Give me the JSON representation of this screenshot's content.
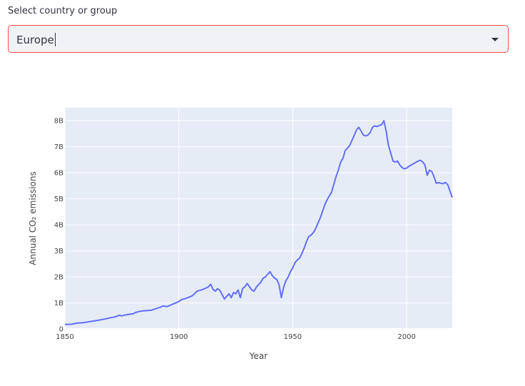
{
  "selector": {
    "label": "Select country or group",
    "value": "Europe",
    "accent_color": "#ff4b4b"
  },
  "chart_data": {
    "type": "line",
    "xlabel": "Year",
    "ylabel": "Annual CO₂ emissions",
    "xlim": [
      1850,
      2020
    ],
    "ylim": [
      0,
      8.5
    ],
    "x_ticks": [
      {
        "value": 1850,
        "label": "1850"
      },
      {
        "value": 1900,
        "label": "1900"
      },
      {
        "value": 1950,
        "label": "1950"
      },
      {
        "value": 2000,
        "label": "2000"
      }
    ],
    "y_ticks": [
      {
        "value": 0,
        "label": "0"
      },
      {
        "value": 1,
        "label": "1B"
      },
      {
        "value": 2,
        "label": "2B"
      },
      {
        "value": 3,
        "label": "3B"
      },
      {
        "value": 4,
        "label": "4B"
      },
      {
        "value": 5,
        "label": "5B"
      },
      {
        "value": 6,
        "label": "6B"
      },
      {
        "value": 7,
        "label": "7B"
      },
      {
        "value": 8,
        "label": "8B"
      }
    ],
    "line_color": "#636efa",
    "plot_bg": "#e5ecf6",
    "grid": true,
    "series": [
      {
        "x": [
          1850,
          1853,
          1855,
          1858,
          1860,
          1863,
          1865,
          1868,
          1870,
          1872,
          1873,
          1874,
          1875,
          1876,
          1878,
          1880,
          1881,
          1883,
          1885,
          1888,
          1890,
          1892,
          1893,
          1895,
          1898,
          1900,
          1901,
          1903,
          1905,
          1906,
          1908,
          1910,
          1912,
          1913,
          1914,
          1915,
          1916,
          1917,
          1918,
          1919,
          1920,
          1921,
          1922,
          1923,
          1924,
          1925,
          1926,
          1927,
          1928,
          1929,
          1930,
          1931,
          1932,
          1933,
          1934,
          1935,
          1936,
          1937,
          1938,
          1939,
          1940,
          1941,
          1942,
          1943,
          1944,
          1945,
          1946,
          1947,
          1948,
          1949,
          1950,
          1951,
          1952,
          1953,
          1954,
          1955,
          1956,
          1957,
          1958,
          1959,
          1960,
          1961,
          1962,
          1963,
          1964,
          1965,
          1966,
          1967,
          1968,
          1969,
          1970,
          1971,
          1972,
          1973,
          1974,
          1975,
          1976,
          1977,
          1978,
          1979,
          1980,
          1981,
          1982,
          1983,
          1984,
          1985,
          1986,
          1987,
          1988,
          1989,
          1990,
          1991,
          1992,
          1993,
          1994,
          1995,
          1996,
          1997,
          1998,
          1999,
          2000,
          2001,
          2002,
          2003,
          2004,
          2005,
          2006,
          2007,
          2008,
          2009,
          2010,
          2011,
          2012,
          2013,
          2014,
          2015,
          2016,
          2017,
          2018,
          2019,
          2020
        ],
        "y": [
          0.17,
          0.18,
          0.22,
          0.24,
          0.27,
          0.31,
          0.34,
          0.39,
          0.43,
          0.46,
          0.5,
          0.52,
          0.5,
          0.53,
          0.56,
          0.58,
          0.63,
          0.68,
          0.7,
          0.72,
          0.78,
          0.84,
          0.88,
          0.86,
          0.98,
          1.05,
          1.12,
          1.17,
          1.24,
          1.28,
          1.45,
          1.5,
          1.57,
          1.62,
          1.72,
          1.52,
          1.45,
          1.55,
          1.48,
          1.32,
          1.15,
          1.25,
          1.35,
          1.2,
          1.4,
          1.35,
          1.5,
          1.2,
          1.55,
          1.62,
          1.75,
          1.62,
          1.5,
          1.45,
          1.6,
          1.7,
          1.8,
          1.95,
          2.0,
          2.1,
          2.2,
          2.05,
          1.95,
          1.9,
          1.7,
          1.2,
          1.6,
          1.85,
          2.0,
          2.2,
          2.35,
          2.55,
          2.65,
          2.72,
          2.9,
          3.1,
          3.35,
          3.55,
          3.6,
          3.7,
          3.85,
          4.05,
          4.25,
          4.5,
          4.75,
          4.95,
          5.1,
          5.25,
          5.55,
          5.85,
          6.1,
          6.4,
          6.55,
          6.85,
          6.95,
          7.05,
          7.25,
          7.45,
          7.65,
          7.75,
          7.6,
          7.45,
          7.42,
          7.45,
          7.55,
          7.75,
          7.8,
          7.78,
          7.82,
          7.85,
          8.0,
          7.6,
          7.05,
          6.75,
          6.45,
          6.42,
          6.45,
          6.3,
          6.2,
          6.15,
          6.18,
          6.25,
          6.3,
          6.35,
          6.4,
          6.45,
          6.48,
          6.42,
          6.3,
          5.9,
          6.1,
          6.05,
          5.85,
          5.6,
          5.62,
          5.6,
          5.58,
          5.63,
          5.55,
          5.3,
          5.05
        ]
      }
    ]
  }
}
